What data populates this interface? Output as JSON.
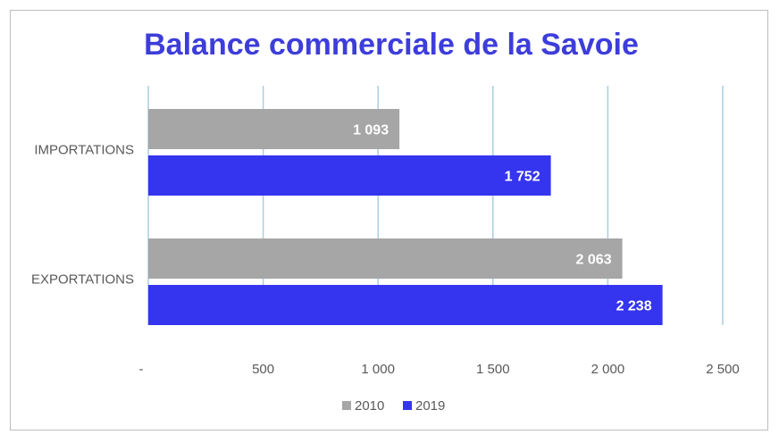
{
  "chart_data": {
    "type": "bar",
    "orientation": "horizontal",
    "title": "Balance commerciale de la Savoie",
    "categories": [
      "IMPORTATIONS",
      "EXPORTATIONS"
    ],
    "series": [
      {
        "name": "2010",
        "values": [
          1093,
          2063
        ],
        "labels": [
          "1 093",
          "2 063"
        ],
        "color": "#a6a6a6"
      },
      {
        "name": "2019",
        "values": [
          1752,
          2238
        ],
        "labels": [
          "1 752",
          "2 238"
        ],
        "color": "#3535ef"
      }
    ],
    "xlim": [
      0,
      2500
    ],
    "x_ticks": [
      0,
      500,
      1000,
      1500,
      2000,
      2500
    ],
    "x_tick_labels": [
      "-",
      "500",
      "1 000",
      "1 500",
      "2 000",
      "2 500"
    ],
    "grid": "vertical",
    "grid_color": "#a9cde0",
    "legend_position": "bottom"
  }
}
